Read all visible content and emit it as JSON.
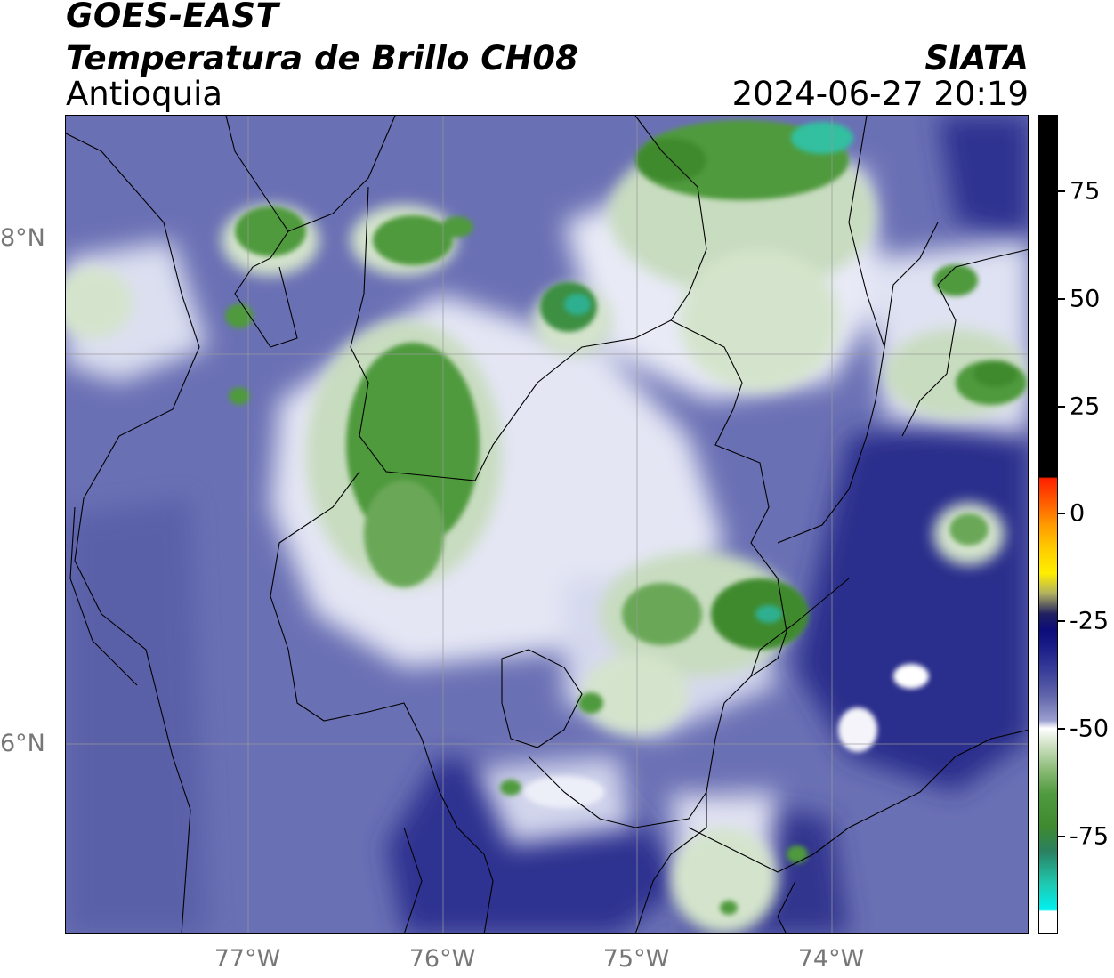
{
  "header": {
    "title": "GOES-EAST",
    "subtitle": "Temperatura de Brillo CH08",
    "region": "Antioquia",
    "organization": "SIATA",
    "datetime": "2024-06-27 20:19"
  },
  "axes": {
    "lat_labels": [
      "8°N",
      "6°N"
    ],
    "lon_labels": [
      "77°W",
      "76°W",
      "75°W",
      "74°W"
    ]
  },
  "colorbar": {
    "ticks": [
      "75",
      "50",
      "25",
      "0",
      "-25",
      "-50",
      "-75"
    ],
    "colors": {
      "black": "#000000",
      "red": "#ff2000",
      "orange": "#ff9900",
      "yellow": "#ffee00",
      "darkblue": "#0c0c7a",
      "blue": "#3a3e9a",
      "lightblue": "#b8bcdc",
      "white": "#ffffff",
      "lightgreen": "#c4dcb8",
      "green": "#3f8a2f",
      "teal": "#20d8c0",
      "cyan": "#00f0f0"
    }
  },
  "map_colors": {
    "background": "#6a70b4",
    "dark": "#2a2e8c",
    "light": "#d8daee",
    "white": "#ffffff",
    "green_light": "#a8c89c",
    "green": "#4a8f3a",
    "teal": "#32c0a0"
  }
}
